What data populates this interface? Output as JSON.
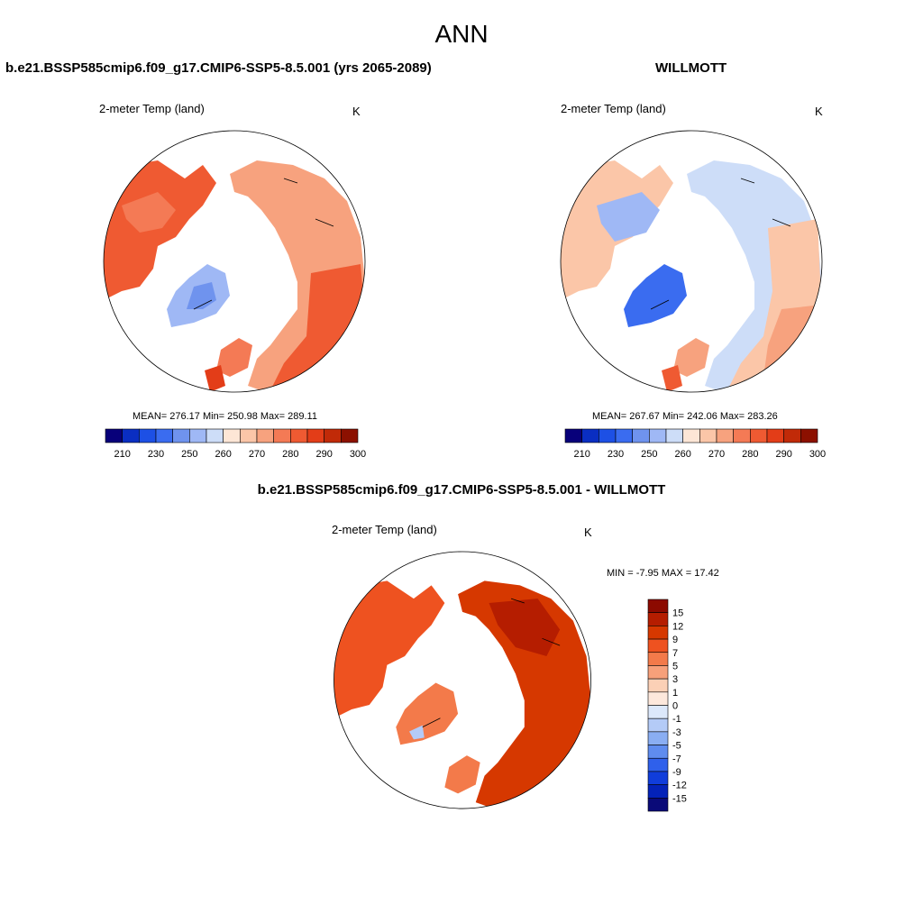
{
  "title": "ANN",
  "panels": [
    {
      "heading": "b.e21.BSSP585cmip6.f09_g17.CMIP6-SSP5-8.5.001 (yrs 2065-2089)",
      "variable": "2-meter Temp (land)",
      "unit": "K",
      "stats": "MEAN= 276.17  Min= 250.98  Max= 289.11",
      "map_tint": "warm"
    },
    {
      "heading": "WILLMOTT",
      "variable": "2-meter Temp (land)",
      "unit": "K",
      "stats": "MEAN= 267.67  Min= 242.06  Max= 283.26",
      "map_tint": "cool"
    }
  ],
  "diff_panel": {
    "heading": "b.e21.BSSP585cmip6.f09_g17.CMIP6-SSP5-8.5.001 - WILLMOTT",
    "variable": "2-meter Temp (land)",
    "unit": "K",
    "stats": "MIN =  -7.95 MAX =  17.42",
    "map_tint": "hot"
  },
  "abs_colorbar": {
    "colors": [
      "#08007a",
      "#0a2ec2",
      "#1d50e5",
      "#3a6cf0",
      "#6f93ee",
      "#9fb8f5",
      "#cdddf8",
      "#fde6d6",
      "#fbc6a8",
      "#f7a27e",
      "#f47a55",
      "#ef5a32",
      "#e33d18",
      "#c12a08",
      "#8c1000"
    ],
    "tick_labels": [
      "210",
      "230",
      "250",
      "260",
      "270",
      "280",
      "290",
      "300"
    ]
  },
  "diff_colorbar": {
    "colors": [
      "#8c0a00",
      "#b51d00",
      "#d63800",
      "#ee5220",
      "#f37a4a",
      "#f7a07a",
      "#fbd0b6",
      "#fde8dc",
      "#dce8fb",
      "#b4cbf7",
      "#8aaef3",
      "#5f8cef",
      "#2f60eb",
      "#103ddb",
      "#0422b8",
      "#0a0a78"
    ],
    "tick_labels": [
      "15",
      "12",
      "9",
      "7",
      "5",
      "3",
      "1",
      "0",
      "-1",
      "-3",
      "-5",
      "-7",
      "-9",
      "-12",
      "-15"
    ]
  }
}
